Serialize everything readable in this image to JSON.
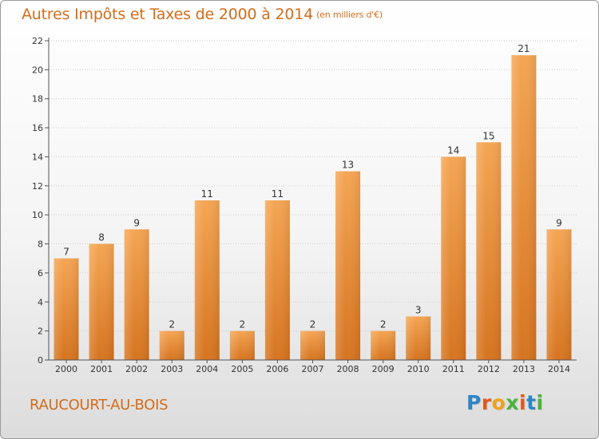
{
  "title": "Autres Impôts et Taxes de 2000 à 2014",
  "unit": "(en milliers d'€)",
  "commune": "RAUCOURT-AU-BOIS",
  "logo": {
    "text": "Proxiti",
    "letters": [
      {
        "ch": "P",
        "color": "#2e86c8"
      },
      {
        "ch": "r",
        "color": "#e05a1a"
      },
      {
        "ch": "o",
        "color": "#f0a21c"
      },
      {
        "ch": "x",
        "color": "#4bb13c"
      },
      {
        "ch": "i",
        "color": "#e05a1a"
      },
      {
        "ch": "t",
        "color": "#2e86c8"
      },
      {
        "ch": "i",
        "color": "#4bb13c"
      }
    ]
  },
  "colors": {
    "title": "#d26d1b",
    "bar_top": "#f5a553",
    "bar_bottom": "#d6741f",
    "axis": "#555555",
    "grid": "#cfcfcf"
  },
  "chart_data": {
    "type": "bar",
    "categories": [
      "2000",
      "2001",
      "2002",
      "2003",
      "2004",
      "2005",
      "2006",
      "2007",
      "2008",
      "2009",
      "2010",
      "2011",
      "2012",
      "2013",
      "2014"
    ],
    "values": [
      7,
      8,
      9,
      2,
      11,
      2,
      11,
      2,
      13,
      2,
      3,
      14,
      15,
      21,
      9
    ],
    "data_labels": [
      "7",
      "8",
      "9",
      "2",
      "11",
      "2",
      "11",
      "2",
      "13",
      "2",
      "3",
      "14",
      "15",
      "21",
      "9"
    ],
    "yticks": [
      "0",
      "2",
      "4",
      "6",
      "8",
      "10",
      "12",
      "14",
      "16",
      "18",
      "20",
      "22"
    ],
    "ylim": [
      0,
      22
    ],
    "grid": true,
    "legend": "none"
  }
}
